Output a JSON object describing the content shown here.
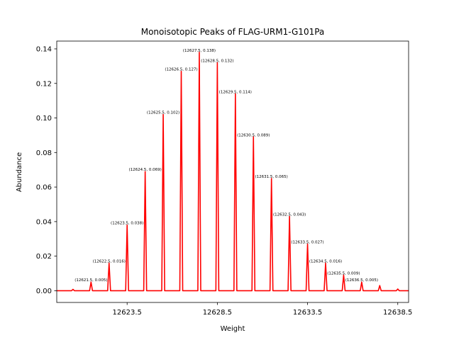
{
  "chart_data": {
    "type": "line",
    "title": "Monoisotopic Peaks of FLAG-URM1-G101Pa",
    "xlabel": "Weight",
    "ylabel": "Abundance",
    "xlim": [
      12619.6,
      12639.1
    ],
    "ylim": [
      -0.0068,
      0.1445
    ],
    "x_ticks": [
      12623.5,
      12628.5,
      12633.5,
      12638.5
    ],
    "x_tick_labels": [
      "12623.5",
      "12628.5",
      "12633.5",
      "12638.5"
    ],
    "y_ticks": [
      0.0,
      0.02,
      0.04,
      0.06,
      0.08,
      0.1,
      0.12,
      0.14
    ],
    "y_tick_labels": [
      "0.00",
      "0.02",
      "0.04",
      "0.06",
      "0.08",
      "0.10",
      "0.12",
      "0.14"
    ],
    "grid": false,
    "series": [
      {
        "color": "#ff0000",
        "peaks": [
          {
            "x": 12620.5,
            "y": 0.0008
          },
          {
            "x": 12621.5,
            "y": 0.005
          },
          {
            "x": 12622.5,
            "y": 0.016
          },
          {
            "x": 12623.5,
            "y": 0.038
          },
          {
            "x": 12624.5,
            "y": 0.069
          },
          {
            "x": 12625.5,
            "y": 0.102
          },
          {
            "x": 12626.5,
            "y": 0.127
          },
          {
            "x": 12627.5,
            "y": 0.138
          },
          {
            "x": 12628.5,
            "y": 0.132
          },
          {
            "x": 12629.5,
            "y": 0.114
          },
          {
            "x": 12630.5,
            "y": 0.089
          },
          {
            "x": 12631.5,
            "y": 0.065
          },
          {
            "x": 12632.5,
            "y": 0.043
          },
          {
            "x": 12633.5,
            "y": 0.027
          },
          {
            "x": 12634.5,
            "y": 0.016
          },
          {
            "x": 12635.5,
            "y": 0.009
          },
          {
            "x": 12636.5,
            "y": 0.005
          },
          {
            "x": 12637.5,
            "y": 0.003
          },
          {
            "x": 12638.5,
            "y": 0.001
          }
        ]
      }
    ],
    "annotations": [
      {
        "text": "(12621.5, 0.005)",
        "x": 12621.5,
        "y": 0.005
      },
      {
        "text": "(12622.5, 0.016)",
        "x": 12622.5,
        "y": 0.016
      },
      {
        "text": "(12623.5, 0.038)",
        "x": 12623.5,
        "y": 0.038
      },
      {
        "text": "(12624.5, 0.069)",
        "x": 12624.5,
        "y": 0.069
      },
      {
        "text": "(12625.5, 0.102)",
        "x": 12625.5,
        "y": 0.102
      },
      {
        "text": "(12626.5, 0.127)",
        "x": 12626.5,
        "y": 0.127
      },
      {
        "text": "(12627.5, 0.138)",
        "x": 12627.5,
        "y": 0.138
      },
      {
        "text": "(12628.5, 0.132)",
        "x": 12628.5,
        "y": 0.132
      },
      {
        "text": "(12629.5, 0.114)",
        "x": 12629.5,
        "y": 0.114
      },
      {
        "text": "(12630.5, 0.089)",
        "x": 12630.5,
        "y": 0.089
      },
      {
        "text": "(12631.5, 0.065)",
        "x": 12631.5,
        "y": 0.065
      },
      {
        "text": "(12632.5, 0.043)",
        "x": 12632.5,
        "y": 0.043
      },
      {
        "text": "(12633.5, 0.027)",
        "x": 12633.5,
        "y": 0.027
      },
      {
        "text": "(12634.5, 0.016)",
        "x": 12634.5,
        "y": 0.016
      },
      {
        "text": "(12635.5, 0.009)",
        "x": 12635.5,
        "y": 0.009
      },
      {
        "text": "(12636.5, 0.005)",
        "x": 12636.5,
        "y": 0.005
      }
    ]
  }
}
